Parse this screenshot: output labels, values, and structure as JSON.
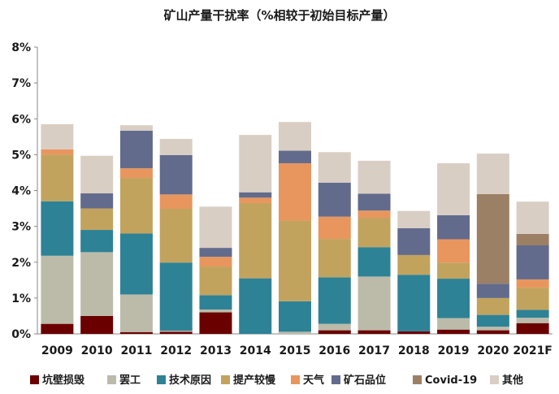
{
  "chart_data": {
    "type": "bar",
    "stacked": true,
    "title": "矿山产量干扰率（%相较于初始目标产量）",
    "xlabel": "",
    "ylabel": "",
    "ylim": [
      0,
      8
    ],
    "y_ticks": [
      "0%",
      "1%",
      "2%",
      "3%",
      "4%",
      "5%",
      "6%",
      "7%",
      "8%"
    ],
    "grid": false,
    "legend_position": "bottom",
    "categories": [
      "2009",
      "2010",
      "2011",
      "2012",
      "2013",
      "2014",
      "2015",
      "2016",
      "2017",
      "2018",
      "2019",
      "2020",
      "2021F"
    ],
    "series": [
      {
        "name": "坑壁损毁",
        "color": "#6b0000",
        "values": [
          0.28,
          0.5,
          0.05,
          0.06,
          0.6,
          0.0,
          0.0,
          0.1,
          0.1,
          0.07,
          0.12,
          0.1,
          0.3
        ]
      },
      {
        "name": "罢工",
        "color": "#bcbbaa",
        "values": [
          1.9,
          1.78,
          1.05,
          0.03,
          0.08,
          0.0,
          0.06,
          0.18,
          1.5,
          0.0,
          0.32,
          0.1,
          0.15
        ]
      },
      {
        "name": "技术原因",
        "color": "#2e8296",
        "values": [
          1.52,
          0.62,
          1.7,
          1.9,
          0.4,
          1.55,
          0.85,
          1.3,
          0.82,
          1.58,
          1.1,
          0.33,
          0.22
        ]
      },
      {
        "name": "提产较慢",
        "color": "#c2a35e",
        "values": [
          1.3,
          0.6,
          1.55,
          1.5,
          0.8,
          2.1,
          2.25,
          1.07,
          0.82,
          0.55,
          0.45,
          0.47,
          0.62
        ]
      },
      {
        "name": "天气",
        "color": "#e8965e",
        "values": [
          0.15,
          0.0,
          0.27,
          0.4,
          0.27,
          0.15,
          1.6,
          0.62,
          0.2,
          0.0,
          0.65,
          0.0,
          0.23
        ]
      },
      {
        "name": "矿石品位",
        "color": "#636b8c",
        "values": [
          0.0,
          0.42,
          1.05,
          1.1,
          0.25,
          0.15,
          0.35,
          0.95,
          0.47,
          0.75,
          0.67,
          0.4,
          0.95
        ]
      },
      {
        "name": "Covid-19",
        "color": "#9c8066",
        "values": [
          0.0,
          0.0,
          0.0,
          0.0,
          0.0,
          0.0,
          0.0,
          0.0,
          0.0,
          0.0,
          0.0,
          2.5,
          0.32
        ]
      },
      {
        "name": "其他",
        "color": "#d9cec3",
        "values": [
          0.7,
          1.05,
          0.15,
          0.45,
          1.15,
          1.6,
          0.8,
          0.85,
          0.92,
          0.48,
          1.45,
          1.13,
          0.9
        ]
      }
    ]
  }
}
